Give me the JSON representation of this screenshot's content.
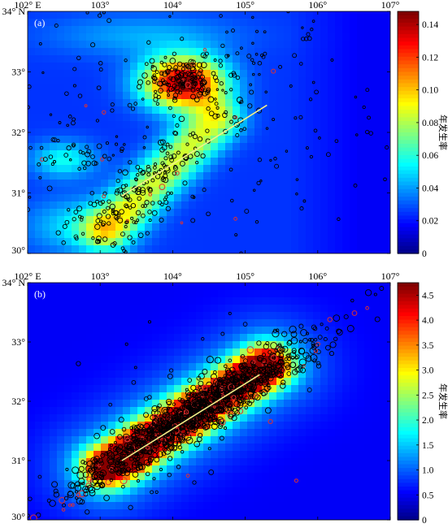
{
  "chart_data": [
    {
      "type": "heatmap",
      "panel_label": "(a)",
      "x_ticks": [
        "102° E",
        "103°",
        "104°",
        "105°",
        "106°",
        "107°"
      ],
      "y_ticks": [
        "34° N",
        "33°",
        "32°",
        "31°",
        "30°"
      ],
      "xlim": [
        102,
        107
      ],
      "ylim": [
        30,
        34
      ],
      "colorbar": {
        "label": "年发生率",
        "ticks": [
          "0.14",
          "0.12",
          "0.10",
          "0.08",
          "0.06",
          "0.04",
          "0.02",
          "0"
        ],
        "range": [
          0,
          0.148
        ]
      },
      "hotspots": [
        {
          "lon": 104.15,
          "lat": 32.85,
          "peak": 0.14
        },
        {
          "lon": 103.95,
          "lat": 31.45,
          "peak": 0.09
        },
        {
          "lon": 103.3,
          "lat": 30.6,
          "peak": 0.08
        }
      ],
      "fault_trace": [
        [
          103.3,
          30.95
        ],
        [
          105.3,
          32.45
        ]
      ],
      "event_markers": "black and red open circles (earthquake epicenters)"
    },
    {
      "type": "heatmap",
      "panel_label": "(b)",
      "x_ticks": [
        "102° E",
        "103°",
        "104°",
        "105°",
        "106°",
        "107°"
      ],
      "y_ticks": [
        "34° N",
        "33°",
        "32°",
        "31°",
        "30°"
      ],
      "xlim": [
        102,
        107
      ],
      "ylim": [
        30,
        34
      ],
      "colorbar": {
        "label": "年发生率",
        "ticks": [
          "4.5",
          "4.0",
          "3.5",
          "3.0",
          "2.5",
          "2.0",
          "1.5",
          "1.0",
          "0.5",
          "0"
        ],
        "range": [
          0,
          4.75
        ]
      },
      "hotspots": [
        {
          "lon": 103.5,
          "lat": 31.05,
          "peak": 4.5
        },
        {
          "lon": 104.3,
          "lat": 31.75,
          "peak": 4.0
        },
        {
          "lon": 105.1,
          "lat": 32.45,
          "peak": 4.2
        }
      ],
      "fault_trace": [
        [
          103.3,
          31.0
        ],
        [
          105.2,
          32.45
        ]
      ],
      "event_markers": "black and red open circles (aftershock epicenters)"
    }
  ]
}
